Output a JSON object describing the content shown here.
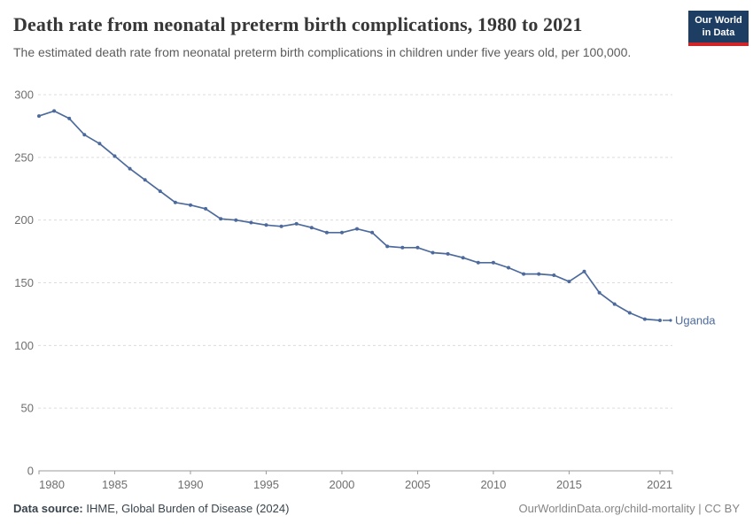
{
  "header": {
    "title": "Death rate from neonatal preterm birth complications, 1980 to 2021",
    "subtitle": "The estimated death rate from neonatal preterm birth complications in children under five years old, per 100,000.",
    "logo_line1": "Our World",
    "logo_line2": "in Data"
  },
  "chart_data": {
    "type": "line",
    "title": "Death rate from neonatal preterm birth complications, 1980 to 2021",
    "xlabel": "",
    "ylabel": "",
    "x_range": [
      1980,
      2021
    ],
    "ylim": [
      0,
      300
    ],
    "yticks": [
      0,
      50,
      100,
      150,
      200,
      250,
      300
    ],
    "xticks": [
      1980,
      1985,
      1990,
      1995,
      2000,
      2005,
      2010,
      2015,
      2021
    ],
    "grid": true,
    "legend_position": "end-of-line",
    "line_color": "#4c6a9c",
    "x": [
      1980,
      1981,
      1982,
      1983,
      1984,
      1985,
      1986,
      1987,
      1988,
      1989,
      1990,
      1991,
      1992,
      1993,
      1994,
      1995,
      1996,
      1997,
      1998,
      1999,
      2000,
      2001,
      2002,
      2003,
      2004,
      2005,
      2006,
      2007,
      2008,
      2009,
      2010,
      2011,
      2012,
      2013,
      2014,
      2015,
      2016,
      2017,
      2018,
      2019,
      2020,
      2021
    ],
    "series": [
      {
        "name": "Uganda",
        "color": "#4c6a9c",
        "values": [
          283,
          287,
          281,
          268,
          261,
          251,
          241,
          232,
          223,
          214,
          212,
          209,
          201,
          200,
          198,
          196,
          195,
          197,
          194,
          190,
          190,
          193,
          190,
          179,
          178,
          178,
          174,
          173,
          170,
          166,
          166,
          162,
          157,
          157,
          156,
          151,
          159,
          142,
          133,
          126,
          121,
          120
        ]
      }
    ]
  },
  "footer": {
    "source_label": "Data source:",
    "source_text": " IHME, Global Burden of Disease (2024)",
    "credit": "OurWorldinData.org/child-mortality | CC BY"
  }
}
